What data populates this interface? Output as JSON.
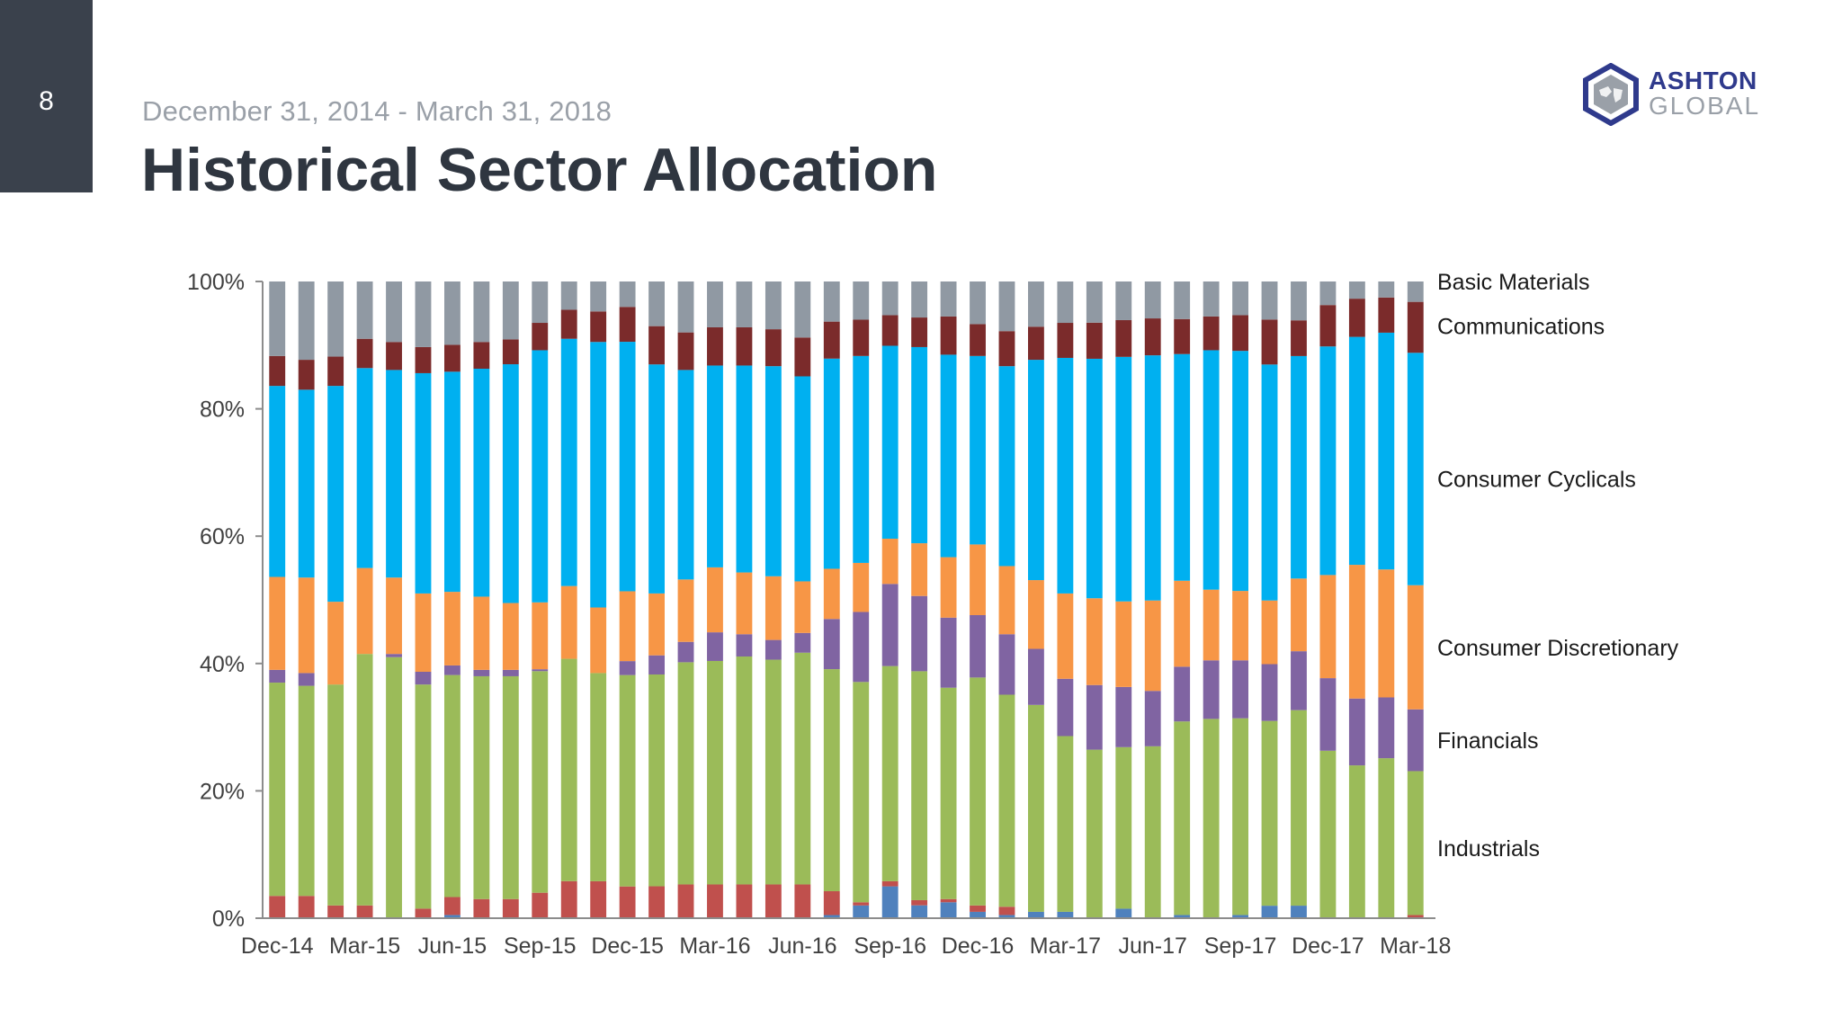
{
  "page_number": "8",
  "header": {
    "date_range": "December 31, 2014 - March 31, 2018",
    "title": "Historical Sector Allocation"
  },
  "logo": {
    "line1": "ASHTON",
    "line2": "GLOBAL"
  },
  "colors": {
    "blue_small": "#4f81bd",
    "red": "#c0504d",
    "green": "#9bbb59",
    "purple": "#8064a2",
    "orange": "#f79646",
    "cyan": "#00b0f0",
    "maroon": "#7b2b2b",
    "gray": "#9099a3"
  },
  "chart_data": {
    "type": "bar",
    "stacked": true,
    "percent": true,
    "ylim": [
      0,
      100
    ],
    "yticks": [
      "0%",
      "20%",
      "40%",
      "60%",
      "80%",
      "100%"
    ],
    "grid": false,
    "categories": [
      "Dec-14",
      "Jan-15",
      "Feb-15",
      "Mar-15",
      "Apr-15",
      "May-15",
      "Jun-15",
      "Jul-15",
      "Aug-15",
      "Sep-15",
      "Oct-15",
      "Nov-15",
      "Dec-15",
      "Jan-16",
      "Feb-16",
      "Mar-16",
      "Apr-16",
      "May-16",
      "Jun-16",
      "Jul-16",
      "Aug-16",
      "Sep-16",
      "Oct-16",
      "Nov-16",
      "Dec-16",
      "Jan-17",
      "Feb-17",
      "Mar-17",
      "Apr-17",
      "May-17",
      "Jun-17",
      "Jul-17",
      "Aug-17",
      "Sep-17",
      "Oct-17",
      "Nov-17",
      "Dec-17",
      "Jan-18",
      "Feb-18",
      "Mar-18"
    ],
    "xtick_labels": [
      "Dec-14",
      "Mar-15",
      "Jun-15",
      "Sep-15",
      "Dec-15",
      "Mar-16",
      "Jun-16",
      "Sep-16",
      "Dec-16",
      "Mar-17",
      "Jun-17",
      "Sep-17",
      "Dec-17",
      "Mar-18"
    ],
    "xtick_indices": [
      0,
      3,
      6,
      9,
      12,
      15,
      18,
      21,
      24,
      27,
      30,
      33,
      36,
      39
    ],
    "label_positions_note": "series labels shown on right side only",
    "series": [
      {
        "color_key": "blue_small",
        "values": [
          0,
          0,
          0,
          0,
          0,
          0,
          0.5,
          0,
          0,
          0,
          0,
          0,
          0,
          0,
          0,
          0,
          0,
          0,
          0,
          0.5,
          2,
          5,
          2,
          2.5,
          1,
          0.5,
          1,
          1,
          0,
          1.5,
          0,
          0.5,
          0,
          0.5,
          2,
          2,
          0,
          0,
          0,
          0
        ]
      },
      {
        "name": "Industrials",
        "color_key": "red",
        "values": [
          3.5,
          3.5,
          2,
          2,
          0,
          1.5,
          2.8,
          3,
          3,
          4,
          5.5,
          5.8,
          5,
          5,
          5.3,
          5.3,
          5.3,
          5.3,
          5.3,
          3.8,
          0.5,
          0.8,
          0.8,
          0.5,
          1,
          1.3,
          0,
          0,
          0,
          0,
          0,
          0,
          0,
          0,
          0,
          0,
          0,
          0,
          0,
          0.5
        ]
      },
      {
        "color_key": "green",
        "values": [
          33.5,
          33,
          34.7,
          39.5,
          41,
          35.2,
          34.7,
          35,
          35,
          34.8,
          33,
          32.7,
          33.3,
          33.2,
          34.9,
          35.1,
          35.8,
          35.3,
          36.4,
          35.4,
          34.6,
          33.8,
          35.6,
          33.2,
          35.8,
          33.3,
          32.5,
          27.6,
          26.6,
          25.5,
          27,
          30.4,
          31.3,
          30.9,
          29.6,
          31.2,
          26.3,
          24,
          25,
          22.6
        ]
      },
      {
        "name": "Financials",
        "color_key": "purple",
        "values": [
          2,
          2,
          0,
          0,
          0.5,
          2,
          1.5,
          1,
          1,
          0.3,
          0,
          0,
          2.2,
          3,
          3.2,
          4.5,
          3.5,
          3.1,
          3.1,
          8,
          11,
          12.9,
          11.7,
          11,
          9.8,
          9.5,
          8.8,
          9,
          10.2,
          9.5,
          8.7,
          8.6,
          9.2,
          9.1,
          9.1,
          9.4,
          11.4,
          10.5,
          9.5,
          9.7
        ]
      },
      {
        "name": "Consumer Discretionary",
        "color_key": "orange",
        "values": [
          14.6,
          15,
          13,
          13.5,
          12,
          12.3,
          11.5,
          11.5,
          10.5,
          10.5,
          10.8,
          10.3,
          11,
          9.7,
          9.8,
          10.2,
          9.7,
          10,
          8.1,
          8,
          7.7,
          7.1,
          8.2,
          9.5,
          11.1,
          10.7,
          10.8,
          13.4,
          13.7,
          13.5,
          14.2,
          13.5,
          11.1,
          10.9,
          10.2,
          11.6,
          16.2,
          21,
          20,
          19.5
        ]
      },
      {
        "name": "Consumer Cyclicals",
        "color_key": "cyan",
        "values": [
          30,
          29.5,
          33.9,
          31.4,
          32.6,
          34.6,
          34.4,
          35.8,
          37.5,
          39.6,
          36.7,
          41.7,
          39.3,
          35.9,
          32.9,
          31.7,
          32.5,
          33,
          32.2,
          33.5,
          32.5,
          30.3,
          30.5,
          31.8,
          29.6,
          31.4,
          34.6,
          37,
          37.8,
          38.6,
          38.5,
          35.6,
          37.6,
          37.7,
          37.8,
          35.5,
          35.9,
          35.8,
          37,
          36.5
        ]
      },
      {
        "name": "Communications",
        "color_key": "maroon",
        "values": [
          4.7,
          4.7,
          4.6,
          4.6,
          4.4,
          4.1,
          4.2,
          4.2,
          3.9,
          4.3,
          4.3,
          4.8,
          5.5,
          6,
          5.9,
          6,
          6,
          5.8,
          6.1,
          5.9,
          5.7,
          4.8,
          4.6,
          6,
          5,
          5.5,
          5.2,
          5.5,
          5.7,
          5.8,
          5.8,
          5.5,
          5.3,
          5.6,
          7.2,
          5.7,
          6.5,
          6,
          5.5,
          8
        ]
      },
      {
        "name": "Basic Materials",
        "color_key": "gray",
        "values": [
          11.7,
          12.3,
          11.8,
          9,
          9.5,
          10.3,
          9.9,
          9.5,
          9.1,
          6.5,
          4.2,
          4.7,
          4,
          7,
          8,
          7.2,
          7.2,
          7.5,
          8.8,
          6.4,
          6,
          5.3,
          5.6,
          5.5,
          6.7,
          7.8,
          7.1,
          6.5,
          6.5,
          6.1,
          5.8,
          5.9,
          5.5,
          5.3,
          6.1,
          6.2,
          3.7,
          2.7,
          2.5,
          3.2
        ]
      }
    ],
    "right_labels": [
      {
        "text": "Basic Materials",
        "y_pct": 100
      },
      {
        "text": "Communications",
        "y_pct": 93
      },
      {
        "text": "Consumer Cyclicals",
        "y_pct": 69
      },
      {
        "text": "Consumer Discretionary",
        "y_pct": 42.5
      },
      {
        "text": "Financials",
        "y_pct": 28
      },
      {
        "text": "Industrials",
        "y_pct": 11
      }
    ]
  }
}
